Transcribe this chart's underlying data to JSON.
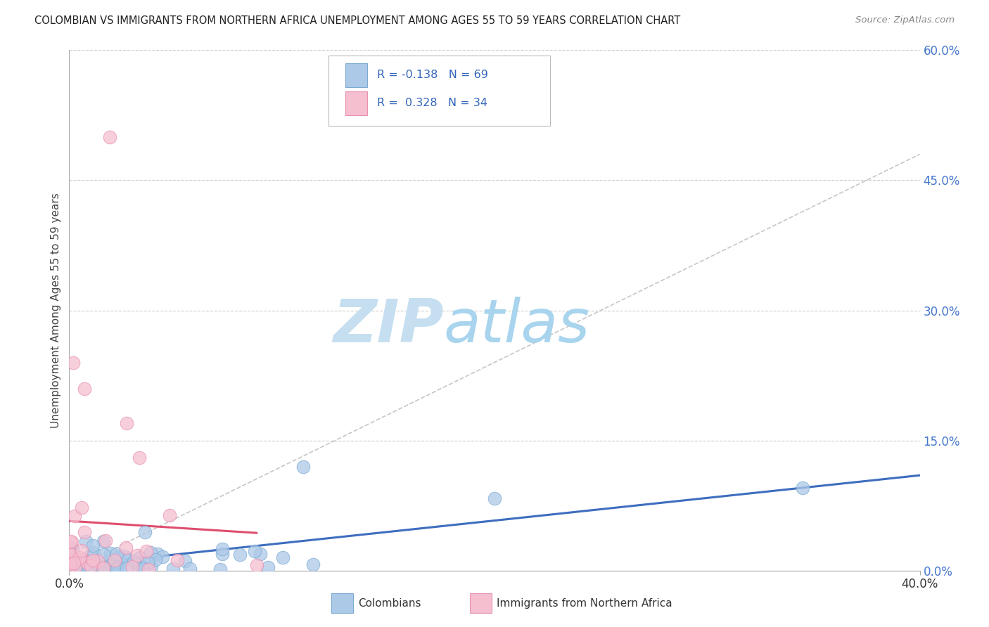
{
  "title": "COLOMBIAN VS IMMIGRANTS FROM NORTHERN AFRICA UNEMPLOYMENT AMONG AGES 55 TO 59 YEARS CORRELATION CHART",
  "source": "Source: ZipAtlas.com",
  "ylabel": "Unemployment Among Ages 55 to 59 years",
  "xlim": [
    0.0,
    0.4
  ],
  "ylim": [
    0.0,
    0.6
  ],
  "ytick_vals_right": [
    0.0,
    0.15,
    0.3,
    0.45,
    0.6
  ],
  "ytick_labels_right": [
    "0.0%",
    "15.0%",
    "30.0%",
    "45.0%",
    "60.0%"
  ],
  "grid_color": "#cccccc",
  "background_color": "#ffffff",
  "col_color": "#adc9e8",
  "col_edge": "#7aaad0",
  "na_color": "#f5bfd0",
  "na_edge": "#e890b0",
  "col_trend_color": "#3366bb",
  "na_trend_color": "#dd4466",
  "gray_dash_color": "#c0c0c0",
  "legend_color": "#3366bb",
  "watermark_color": "#cce3f5",
  "legend_R1": "R = -0.138",
  "legend_N1": "N = 69",
  "legend_R2": "R =  0.328",
  "legend_N2": "N = 34"
}
